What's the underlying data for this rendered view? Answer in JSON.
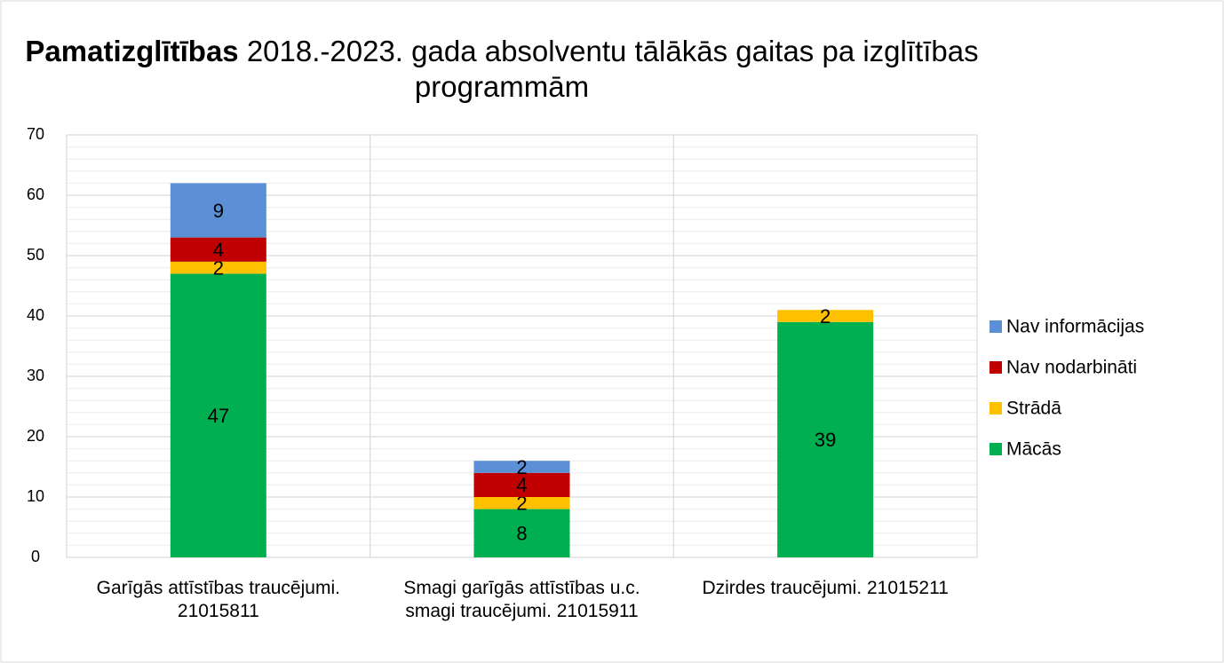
{
  "chart_data": {
    "type": "stacked_bar",
    "title": {
      "bold": "Pamatizglītības",
      "text": "2018.-2023. gada absolventu tālākās gaitas pa izglītības programmām"
    },
    "categories": [
      "Garīgās attīstības traucējumi. 21015811",
      "Smagi garīgās attīstības u.c. smagi traucējumi. 21015911",
      "Dzirdes traucējumi. 21015211"
    ],
    "series": [
      {
        "name": "Mācās",
        "color": "#00b050",
        "values": [
          47,
          8,
          39
        ]
      },
      {
        "name": "Strādā",
        "color": "#ffc000",
        "values": [
          2,
          2,
          2
        ]
      },
      {
        "name": "Nav nodarbināti",
        "color": "#c00000",
        "values": [
          4,
          4,
          null
        ]
      },
      {
        "name": "Nav informācijas",
        "color": "#5b8fd6",
        "values": [
          9,
          2,
          null
        ]
      }
    ],
    "ylim": [
      0,
      70
    ],
    "yticks": [
      0,
      10,
      20,
      30,
      40,
      50,
      60,
      70
    ],
    "grid": true,
    "minor_grid": true,
    "legend": "right"
  }
}
